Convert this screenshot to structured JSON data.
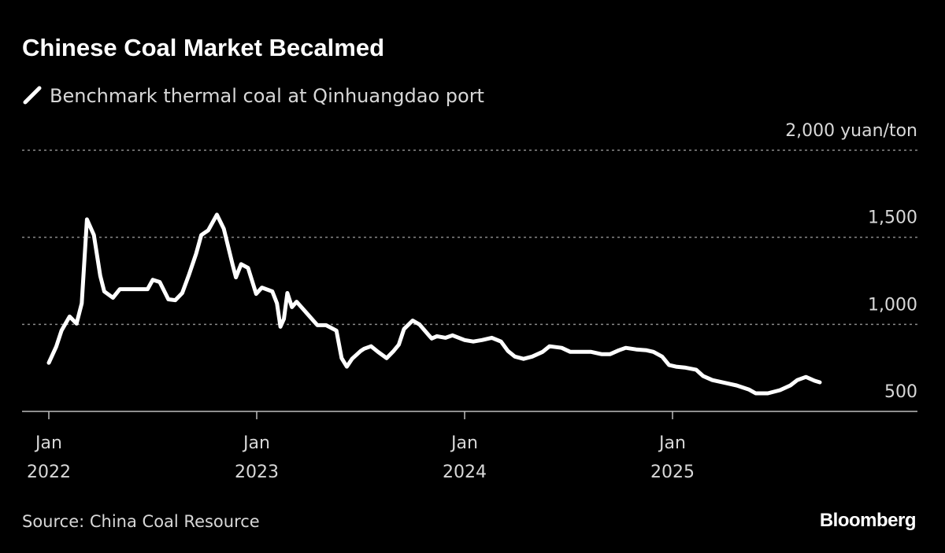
{
  "chart_data": {
    "type": "line",
    "title": "Chinese Coal Market Becalmed",
    "series": [
      {
        "name": "Benchmark thermal coal at Qinhuangdao port",
        "color": "#ffffff",
        "points": [
          [
            "2022-01-01",
            779
          ],
          [
            "2022-01-14",
            873
          ],
          [
            "2022-01-23",
            964
          ],
          [
            "2022-02-07",
            1045
          ],
          [
            "2022-02-19",
            1004
          ],
          [
            "2022-02-28",
            1121
          ],
          [
            "2022-03-07",
            1603
          ],
          [
            "2022-03-19",
            1513
          ],
          [
            "2022-03-30",
            1279
          ],
          [
            "2022-04-07",
            1189
          ],
          [
            "2022-04-22",
            1153
          ],
          [
            "2022-05-04",
            1202
          ],
          [
            "2022-06-22",
            1202
          ],
          [
            "2022-07-01",
            1256
          ],
          [
            "2022-07-13",
            1243
          ],
          [
            "2022-07-28",
            1144
          ],
          [
            "2022-08-10",
            1139
          ],
          [
            "2022-08-22",
            1180
          ],
          [
            "2022-09-04",
            1288
          ],
          [
            "2022-09-16",
            1405
          ],
          [
            "2022-09-25",
            1513
          ],
          [
            "2022-10-07",
            1540
          ],
          [
            "2022-10-22",
            1630
          ],
          [
            "2022-11-04",
            1549
          ],
          [
            "2022-11-19",
            1346
          ],
          [
            "2022-11-25",
            1270
          ],
          [
            "2022-12-04",
            1346
          ],
          [
            "2022-12-16",
            1324
          ],
          [
            "2022-12-30",
            1175
          ],
          [
            "2023-01-10",
            1211
          ],
          [
            "2023-01-28",
            1189
          ],
          [
            "2023-02-06",
            1121
          ],
          [
            "2023-02-12",
            986
          ],
          [
            "2023-02-18",
            1031
          ],
          [
            "2023-02-24",
            1180
          ],
          [
            "2023-03-02",
            1099
          ],
          [
            "2023-03-10",
            1130
          ],
          [
            "2023-03-28",
            1063
          ],
          [
            "2023-04-16",
            995
          ],
          [
            "2023-05-01",
            995
          ],
          [
            "2023-05-19",
            964
          ],
          [
            "2023-05-28",
            806
          ],
          [
            "2023-06-07",
            757
          ],
          [
            "2023-06-16",
            802
          ],
          [
            "2023-07-01",
            847
          ],
          [
            "2023-07-07",
            860
          ],
          [
            "2023-07-19",
            874
          ],
          [
            "2023-08-01",
            842
          ],
          [
            "2023-08-16",
            806
          ],
          [
            "2023-08-28",
            847
          ],
          [
            "2023-09-07",
            883
          ],
          [
            "2023-09-16",
            973
          ],
          [
            "2023-10-01",
            1022
          ],
          [
            "2023-10-13",
            999
          ],
          [
            "2023-10-28",
            941
          ],
          [
            "2023-11-04",
            919
          ],
          [
            "2023-11-13",
            932
          ],
          [
            "2023-11-28",
            923
          ],
          [
            "2023-12-10",
            937
          ],
          [
            "2024-01-01",
            910
          ],
          [
            "2024-01-16",
            901
          ],
          [
            "2024-02-01",
            910
          ],
          [
            "2024-02-18",
            923
          ],
          [
            "2024-03-04",
            901
          ],
          [
            "2024-03-16",
            847
          ],
          [
            "2024-03-28",
            815
          ],
          [
            "2024-04-13",
            802
          ],
          [
            "2024-04-28",
            815
          ],
          [
            "2024-05-16",
            842
          ],
          [
            "2024-05-28",
            874
          ],
          [
            "2024-06-19",
            865
          ],
          [
            "2024-07-04",
            842
          ],
          [
            "2024-07-25",
            842
          ],
          [
            "2024-08-10",
            842
          ],
          [
            "2024-08-28",
            829
          ],
          [
            "2024-09-13",
            829
          ],
          [
            "2024-09-28",
            851
          ],
          [
            "2024-10-10",
            865
          ],
          [
            "2024-10-28",
            856
          ],
          [
            "2024-11-16",
            851
          ],
          [
            "2024-11-28",
            842
          ],
          [
            "2024-12-13",
            815
          ],
          [
            "2024-12-25",
            766
          ],
          [
            "2025-01-07",
            757
          ],
          [
            "2025-01-22",
            752
          ],
          [
            "2025-02-12",
            739
          ],
          [
            "2025-02-24",
            703
          ],
          [
            "2025-03-10",
            680
          ],
          [
            "2025-04-04",
            662
          ],
          [
            "2025-04-22",
            649
          ],
          [
            "2025-05-13",
            626
          ],
          [
            "2025-05-25",
            604
          ],
          [
            "2025-06-16",
            604
          ],
          [
            "2025-07-07",
            622
          ],
          [
            "2025-07-25",
            649
          ],
          [
            "2025-08-07",
            680
          ],
          [
            "2025-08-22",
            698
          ],
          [
            "2025-09-07",
            676
          ],
          [
            "2025-09-16",
            667
          ]
        ]
      }
    ],
    "x_ticks": [
      {
        "date": "2022-01-01",
        "line1": "Jan",
        "line2": "2022"
      },
      {
        "date": "2023-01-01",
        "line1": "Jan",
        "line2": "2023"
      },
      {
        "date": "2024-01-01",
        "line1": "Jan",
        "line2": "2024"
      },
      {
        "date": "2025-01-01",
        "line1": "Jan",
        "line2": "2025"
      }
    ],
    "y_ticks": [
      {
        "value": 500,
        "label": "500"
      },
      {
        "value": 1000,
        "label": "1,000"
      },
      {
        "value": 1500,
        "label": "1,500"
      },
      {
        "value": 2000,
        "label": "2,000 yuan/ton"
      }
    ],
    "ylim": [
      500,
      2000
    ],
    "xlim": [
      "2022-01-01",
      "2025-12-01"
    ],
    "grid": true,
    "legend_placement": "top-left",
    "background": "#000000"
  },
  "footer": {
    "source": "Source: China Coal Resource",
    "logo": "Bloomberg"
  }
}
